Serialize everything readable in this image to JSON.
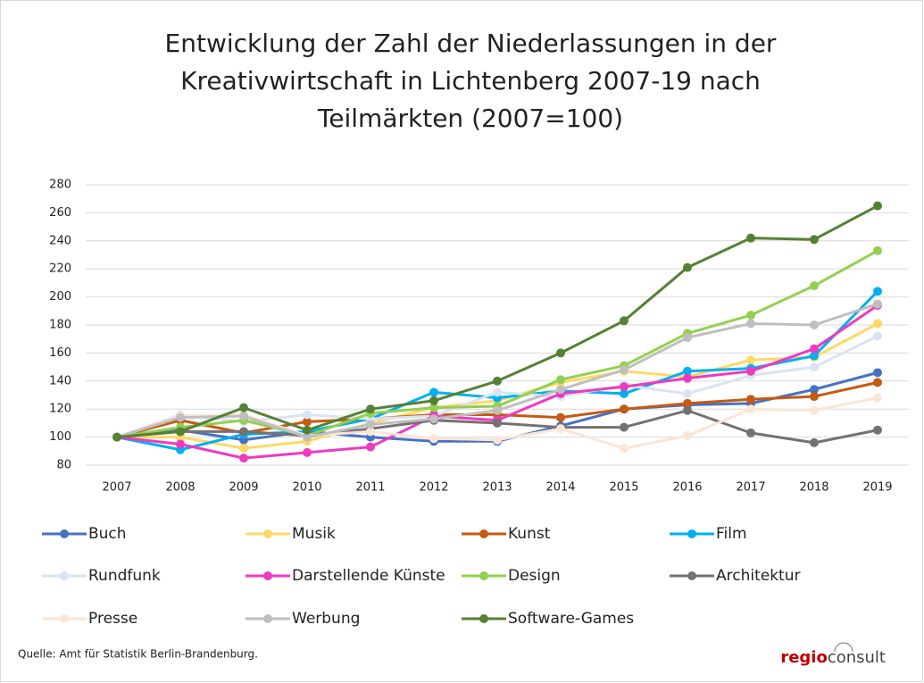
{
  "chart_data": {
    "type": "line",
    "title": [
      "Entwicklung der Zahl der Niederlassungen in der",
      "Kreativwirtschaft in Lichtenberg 2007-19 nach",
      "Teilmärkten (2007=100)"
    ],
    "categories": [
      "2007",
      "2008",
      "2009",
      "2010",
      "2011",
      "2012",
      "2013",
      "2014",
      "2015",
      "2016",
      "2017",
      "2018",
      "2019"
    ],
    "ylim": [
      80,
      280
    ],
    "yticks": [
      80,
      100,
      120,
      140,
      160,
      180,
      200,
      220,
      240,
      260,
      280
    ],
    "series": [
      {
        "name": "Buch",
        "color": "#4472c4",
        "values": [
          100,
          105,
          98,
          104,
          100,
          97,
          97,
          108,
          120,
          123,
          124,
          134,
          146
        ]
      },
      {
        "name": "Musik",
        "color": "#ffd966",
        "values": [
          100,
          100,
          92,
          97,
          110,
          121,
          126,
          139,
          147,
          143,
          155,
          157,
          181
        ]
      },
      {
        "name": "Kunst",
        "color": "#c55a11",
        "values": [
          100,
          112,
          103,
          111,
          113,
          116,
          116,
          114,
          120,
          124,
          127,
          129,
          139
        ]
      },
      {
        "name": "Film",
        "color": "#00b0f0",
        "values": [
          100,
          91,
          102,
          104,
          113,
          132,
          128,
          133,
          131,
          147,
          149,
          158,
          204
        ]
      },
      {
        "name": "Rundfunk",
        "color": "#dae3f3",
        "values": [
          100,
          116,
          111,
          116,
          113,
          115,
          132,
          129,
          137,
          131,
          144,
          150,
          172
        ]
      },
      {
        "name": "Darstellende Künste",
        "color": "#ee3ac0",
        "values": [
          100,
          95,
          85,
          89,
          93,
          115,
          112,
          131,
          136,
          142,
          147,
          163,
          194
        ]
      },
      {
        "name": "Design",
        "color": "#92d050",
        "values": [
          100,
          107,
          112,
          101,
          117,
          121,
          122,
          141,
          151,
          174,
          187,
          208,
          233
        ]
      },
      {
        "name": "Architektur",
        "color": "#767171",
        "values": [
          100,
          104,
          104,
          101,
          106,
          112,
          110,
          107,
          107,
          119,
          103,
          96,
          105
        ]
      },
      {
        "name": "Presse",
        "color": "#fbe5d6",
        "values": [
          100,
          115,
          116,
          101,
          104,
          99,
          98,
          106,
          92,
          101,
          120,
          119,
          128
        ]
      },
      {
        "name": "Werbung",
        "color": "#bfbfbf",
        "values": [
          100,
          114,
          115,
          100,
          109,
          113,
          119,
          134,
          148,
          171,
          181,
          180,
          195
        ]
      },
      {
        "name": "Software-Games",
        "color": "#548235",
        "values": [
          100,
          104,
          121,
          105,
          120,
          126,
          140,
          160,
          183,
          221,
          242,
          241,
          265
        ]
      }
    ],
    "grid": true,
    "source": "Quelle: Amt für Statistik Berlin-Brandenburg.",
    "logo": [
      "regio",
      "consult"
    ]
  }
}
